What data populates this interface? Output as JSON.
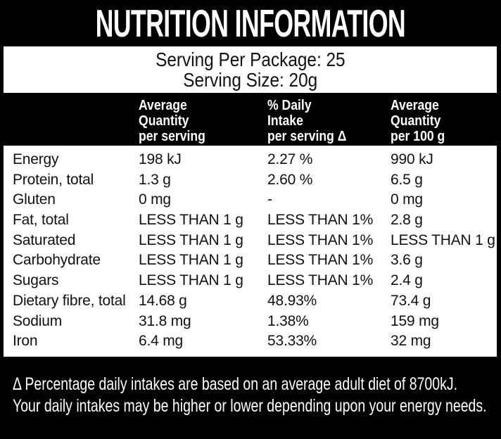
{
  "title": "NUTRITION INFORMATION",
  "serving_info": {
    "servings_per_package": "Serving Per Package: 25",
    "serving_size": "Serving Size: 20g"
  },
  "table": {
    "columns": {
      "per_serving": [
        "Average",
        "Quantity",
        "per serving"
      ],
      "daily_intake": [
        "% Daily",
        "Intake",
        "per serving Δ"
      ],
      "per_100g": [
        "Average",
        "Quantity",
        "per 100 g"
      ]
    },
    "rows": [
      {
        "nutrient": "Energy",
        "per_serving": "198 kJ",
        "daily_intake": "2.27 %",
        "per_100g": "990 kJ"
      },
      {
        "nutrient": "Protein, total",
        "per_serving": "1.3 g",
        "daily_intake": "2.60 %",
        "per_100g": "6.5 g"
      },
      {
        "nutrient": "Gluten",
        "per_serving": "0 mg",
        "daily_intake": "-",
        "per_100g": "0 mg"
      },
      {
        "nutrient": "Fat, total",
        "per_serving": "LESS THAN 1 g",
        "daily_intake": "LESS THAN 1%",
        "per_100g": "2.8 g"
      },
      {
        "nutrient": "Saturated",
        "per_serving": "LESS THAN 1 g",
        "daily_intake": "LESS THAN 1%",
        "per_100g": "LESS THAN 1 g"
      },
      {
        "nutrient": "Carbohydrate",
        "per_serving": "LESS THAN 1 g",
        "daily_intake": "LESS THAN 1%",
        "per_100g": "3.6 g"
      },
      {
        "nutrient": "Sugars",
        "per_serving": "LESS THAN 1 g",
        "daily_intake": "LESS THAN 1%",
        "per_100g": "2.4 g"
      },
      {
        "nutrient": "Dietary fibre, total",
        "per_serving": "14.68 g",
        "daily_intake": "48.93%",
        "per_100g": "73.4 g"
      },
      {
        "nutrient": "Sodium",
        "per_serving": "31.8 mg",
        "daily_intake": "1.38%",
        "per_100g": "159 mg"
      },
      {
        "nutrient": "Iron",
        "per_serving": "6.4 mg",
        "daily_intake": "53.33%",
        "per_100g": "32 mg"
      }
    ]
  },
  "footnote": {
    "line1": "Δ Percentage daily intakes are based on an average adult diet of 8700kJ.",
    "line2": "Your daily intakes may be higher or lower depending upon your energy needs."
  },
  "colors": {
    "background": "#000000",
    "panel": "#ffffff",
    "text_dark": "#111111",
    "text_light": "#ffffff"
  }
}
